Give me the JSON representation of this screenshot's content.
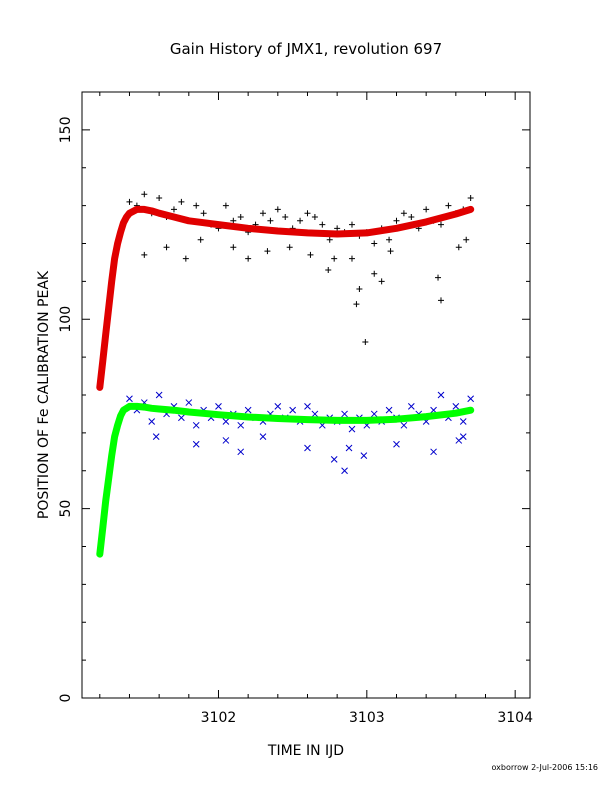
{
  "chart_data": {
    "type": "scatter",
    "title": "Gain History of JMX1, revolution 697",
    "xlabel": "TIME IN IJD",
    "ylabel": "POSITION OF Fe CALIBRATION PEAK",
    "xlim": [
      3101.08,
      3104.1
    ],
    "ylim": [
      0,
      160
    ],
    "x_ticks": [
      3102,
      3103,
      3104
    ],
    "x_tick_labels": [
      "3102",
      "3103",
      "3104"
    ],
    "y_ticks": [
      0,
      50,
      100,
      150
    ],
    "y_tick_labels": [
      "0",
      "50",
      "100",
      "150"
    ],
    "grid": false,
    "legend": "none",
    "series": [
      {
        "key": "upper_points",
        "marker": "plus",
        "color": "#000000",
        "x": [
          3101.4,
          3101.45,
          3101.5,
          3101.55,
          3101.6,
          3101.65,
          3101.7,
          3101.75,
          3101.8,
          3101.85,
          3101.9,
          3101.95,
          3102.0,
          3102.05,
          3102.1,
          3102.15,
          3102.2,
          3102.25,
          3102.3,
          3102.35,
          3102.4,
          3102.45,
          3102.5,
          3102.55,
          3102.6,
          3102.65,
          3102.7,
          3102.75,
          3102.8,
          3102.85,
          3102.9,
          3102.95,
          3103.0,
          3103.05,
          3103.1,
          3103.15,
          3103.2,
          3103.25,
          3103.3,
          3103.35,
          3103.4,
          3103.45,
          3103.5,
          3103.55,
          3103.6,
          3103.65,
          3103.7
        ],
        "y": [
          131,
          130,
          133,
          128,
          132,
          127,
          129,
          131,
          126,
          130,
          128,
          125,
          124,
          130,
          126,
          127,
          123,
          125,
          128,
          126,
          129,
          127,
          124,
          126,
          128,
          127,
          125,
          121,
          124,
          123,
          125,
          122,
          123,
          120,
          124,
          121,
          126,
          128,
          127,
          124,
          129,
          126,
          125,
          130,
          128,
          129,
          132
        ]
      },
      {
        "key": "upper_outliers",
        "marker": "plus",
        "color": "#000000",
        "x": [
          3101.5,
          3101.65,
          3101.78,
          3101.88,
          3102.1,
          3102.2,
          3102.33,
          3102.48,
          3102.62,
          3102.74,
          3102.78,
          3102.9,
          3102.93,
          3102.95,
          3102.99,
          3103.05,
          3103.1,
          3103.16,
          3103.48,
          3103.5,
          3103.62,
          3103.67
        ],
        "y": [
          117,
          119,
          116,
          121,
          119,
          116,
          118,
          119,
          117,
          113,
          116,
          116,
          104,
          108,
          94,
          112,
          110,
          118,
          111,
          105,
          119,
          121
        ]
      },
      {
        "key": "upper_fit",
        "marker": "line",
        "color": "#e00000",
        "x": [
          3101.2,
          3101.22,
          3101.24,
          3101.26,
          3101.28,
          3101.3,
          3101.32,
          3101.34,
          3101.36,
          3101.38,
          3101.4,
          3101.45,
          3101.5,
          3101.55,
          3101.6,
          3101.7,
          3101.8,
          3101.9,
          3102.0,
          3102.2,
          3102.4,
          3102.6,
          3102.8,
          3103.0,
          3103.2,
          3103.4,
          3103.6,
          3103.7
        ],
        "y": [
          82,
          89,
          96,
          103,
          110,
          116,
          120,
          123,
          125.5,
          127,
          128,
          129,
          129,
          128.6,
          128,
          127,
          126,
          125.5,
          125,
          124,
          123.3,
          122.8,
          122.5,
          122.8,
          124,
          125.7,
          127.8,
          129
        ]
      },
      {
        "key": "lower_points",
        "marker": "cross",
        "color": "#0000cc",
        "x": [
          3101.4,
          3101.45,
          3101.5,
          3101.55,
          3101.6,
          3101.65,
          3101.7,
          3101.75,
          3101.8,
          3101.85,
          3101.9,
          3101.95,
          3102.0,
          3102.05,
          3102.1,
          3102.15,
          3102.2,
          3102.25,
          3102.3,
          3102.35,
          3102.4,
          3102.45,
          3102.5,
          3102.55,
          3102.6,
          3102.65,
          3102.7,
          3102.75,
          3102.8,
          3102.85,
          3102.9,
          3102.95,
          3103.0,
          3103.05,
          3103.1,
          3103.15,
          3103.2,
          3103.25,
          3103.3,
          3103.35,
          3103.4,
          3103.45,
          3103.5,
          3103.55,
          3103.6,
          3103.65,
          3103.7
        ],
        "y": [
          79,
          76,
          78,
          73,
          80,
          75,
          77,
          74,
          78,
          72,
          76,
          74,
          77,
          73,
          75,
          72,
          76,
          74,
          73,
          75,
          77,
          74,
          76,
          73,
          77,
          75,
          72,
          74,
          73,
          75,
          71,
          74,
          72,
          75,
          73,
          76,
          74,
          72,
          77,
          75,
          73,
          76,
          80,
          74,
          77,
          73,
          79
        ]
      },
      {
        "key": "lower_outliers",
        "marker": "cross",
        "color": "#0000cc",
        "x": [
          3101.58,
          3101.85,
          3102.05,
          3102.15,
          3102.3,
          3102.6,
          3102.78,
          3102.85,
          3102.88,
          3102.98,
          3103.2,
          3103.45,
          3103.62,
          3103.65
        ],
        "y": [
          69,
          67,
          68,
          65,
          69,
          66,
          63,
          60,
          66,
          64,
          67,
          65,
          68,
          69
        ]
      },
      {
        "key": "lower_fit",
        "marker": "line",
        "color": "#00ff00",
        "x": [
          3101.2,
          3101.22,
          3101.24,
          3101.26,
          3101.28,
          3101.3,
          3101.32,
          3101.34,
          3101.36,
          3101.38,
          3101.4,
          3101.45,
          3101.5,
          3101.55,
          3101.6,
          3101.7,
          3101.8,
          3102.0,
          3102.2,
          3102.4,
          3102.6,
          3102.8,
          3103.0,
          3103.2,
          3103.4,
          3103.6,
          3103.7
        ],
        "y": [
          38,
          45,
          52,
          58,
          64,
          69,
          72,
          74.5,
          76,
          76.5,
          77,
          77,
          76.8,
          76.5,
          76.3,
          76,
          75.5,
          74.8,
          74.2,
          73.8,
          73.5,
          73.3,
          73.3,
          73.6,
          74.3,
          75.2,
          76
        ]
      }
    ]
  },
  "footer": {
    "stamp": "oxborrow   2-Jul-2006 15:16"
  }
}
